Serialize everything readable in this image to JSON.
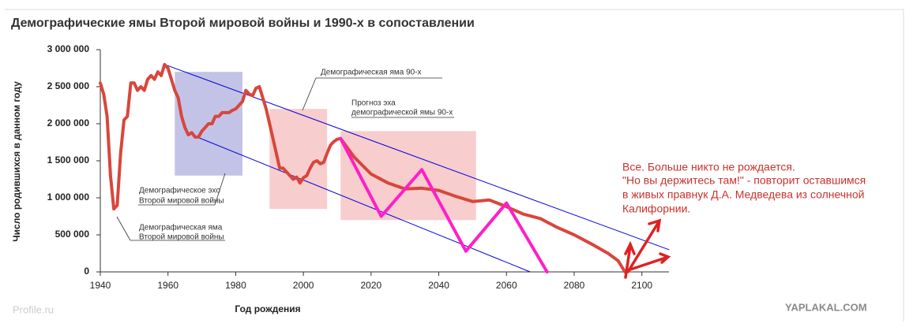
{
  "chart_data": {
    "type": "line",
    "title": "Демографические ямы Второй мировой войны и 1990-х в сопоставлении",
    "x_label": "Год рождения",
    "y_label": "Число родившихся в данном году",
    "xlim": [
      1940,
      2108
    ],
    "xticks": [
      1940,
      1960,
      1980,
      2000,
      2020,
      2040,
      2060,
      2080,
      2100
    ],
    "ylim": [
      0,
      3000000
    ],
    "yticks": [
      0,
      {
        "value": 500000,
        "label": "500 000"
      },
      {
        "value": 1000000,
        "label": "1 000 000"
      },
      {
        "value": 1500000,
        "label": "1 500 000"
      },
      {
        "value": 2000000,
        "label": "2 000 000"
      },
      {
        "value": 2500000,
        "label": "2 500 000"
      },
      {
        "value": 3000000,
        "label": "3 000 000"
      }
    ],
    "regions": [
      {
        "x": [
          1962,
          1982
        ],
        "y": [
          1300000,
          2700000
        ],
        "color": "#b9b9e3"
      },
      {
        "x": [
          1990,
          2007
        ],
        "y": [
          850000,
          2200000
        ],
        "color": "#f6c4c4"
      },
      {
        "x": [
          2011,
          2051
        ],
        "y": [
          700000,
          1900000
        ],
        "color": "#f6c4c4"
      }
    ],
    "series": [
      {
        "color": "#0000dd",
        "width": 1,
        "x": [
          1959,
          2108
        ],
        "values": [
          2800000,
          300000
        ]
      },
      {
        "color": "#0000dd",
        "width": 1,
        "x": [
          1967.5,
          2067
        ],
        "values": [
          1840000,
          0
        ]
      },
      {
        "color": "#d9463c",
        "width": 4,
        "x": [
          1940,
          1941,
          1942,
          1943,
          1944,
          1945,
          1946,
          1947,
          1948,
          1949,
          1950,
          1951,
          1952,
          1953,
          1954,
          1955,
          1956,
          1957,
          1958,
          1959,
          1960,
          1961,
          1962,
          1963,
          1964,
          1965,
          1966,
          1967,
          1968,
          1969,
          1970,
          1971,
          1972,
          1973,
          1974,
          1975,
          1976,
          1977,
          1978,
          1979,
          1980,
          1981,
          1982,
          1983,
          1984,
          1985,
          1986,
          1987,
          1988,
          1989,
          1990,
          1991,
          1992,
          1993,
          1994,
          1995,
          1996,
          1997,
          1998,
          1999,
          2000,
          2001,
          2002,
          2003,
          2004,
          2005,
          2006,
          2007,
          2008,
          2009,
          2010,
          2011,
          2015,
          2020,
          2025,
          2030,
          2035,
          2040,
          2045,
          2050,
          2055,
          2060,
          2065,
          2070,
          2075,
          2080,
          2085,
          2090,
          2093,
          2095
        ],
        "values": [
          2550000,
          2400000,
          2100000,
          1300000,
          850000,
          900000,
          1600000,
          2050000,
          2100000,
          2550000,
          2550000,
          2450000,
          2500000,
          2450000,
          2600000,
          2650000,
          2600000,
          2700000,
          2650000,
          2800000,
          2750000,
          2600000,
          2450000,
          2350000,
          2100000,
          1950000,
          1850000,
          1880000,
          1820000,
          1820000,
          1900000,
          1950000,
          2000000,
          2000000,
          2100000,
          2100000,
          2150000,
          2150000,
          2150000,
          2180000,
          2200000,
          2250000,
          2300000,
          2450000,
          2400000,
          2380000,
          2480000,
          2500000,
          2350000,
          2200000,
          2000000,
          1800000,
          1600000,
          1400000,
          1400000,
          1350000,
          1300000,
          1250000,
          1280000,
          1200000,
          1270000,
          1300000,
          1400000,
          1480000,
          1500000,
          1460000,
          1480000,
          1600000,
          1710000,
          1760000,
          1790000,
          1800000,
          1550000,
          1320000,
          1200000,
          1120000,
          1130000,
          1100000,
          1020000,
          950000,
          970000,
          880000,
          780000,
          720000,
          600000,
          500000,
          380000,
          250000,
          150000,
          0
        ]
      },
      {
        "color": "#ff1fc8",
        "width": 4,
        "x": [
          2011,
          2023,
          2035,
          2048,
          2060,
          2072
        ],
        "values": [
          1800000,
          750000,
          1380000,
          280000,
          930000,
          0
        ]
      }
    ],
    "annotations": [
      "Демографическая яма 90-х",
      "Прогноз эха",
      "демографической ямы 90-х",
      "Демографическое эхо",
      "Второй мировой войны",
      "Демографическая яма",
      "Второй мировой войны"
    ],
    "comment": [
      "Все. Больше никто не рождается.",
      "\"Но вы держитесь там!\" - повторит оставшимся",
      "в живых правнук Д.А. Медведева из солнечной",
      "Калифорнии."
    ],
    "watermarks": [
      "Profile.ru",
      "YAPLAKAL.COM"
    ]
  }
}
